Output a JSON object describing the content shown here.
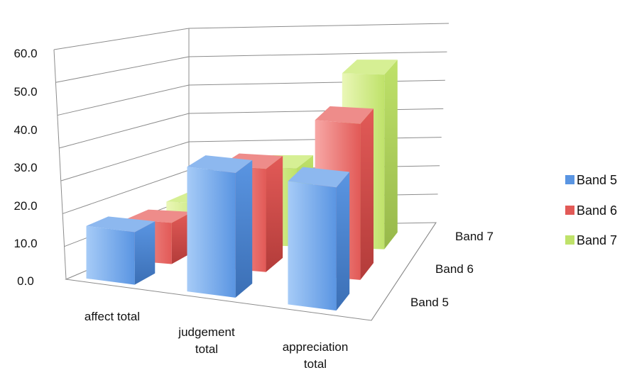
{
  "chart_data": {
    "type": "bar",
    "title": "",
    "categories": [
      "affect total",
      "judgement total",
      "appreciation total"
    ],
    "category_lines": [
      [
        "affect total"
      ],
      [
        "judgement",
        "total"
      ],
      [
        "appreciation",
        "total"
      ]
    ],
    "series": [
      {
        "name": "Band 5",
        "values": [
          17.5,
          41.5,
          41.0
        ]
      },
      {
        "name": "Band 6",
        "values": [
          14.0,
          35.0,
          53.0
        ]
      },
      {
        "name": "Band 7",
        "values": [
          14.0,
          27.0,
          60.5
        ]
      }
    ],
    "ylim": [
      0,
      60
    ],
    "yticks": [
      "0.0",
      "10.0",
      "20.0",
      "30.0",
      "40.0",
      "50.0",
      "60.0"
    ],
    "depth_labels": [
      "Band 5",
      "Band 6",
      "Band 7"
    ],
    "legend": [
      "Band 5",
      "Band 6",
      "Band 7"
    ],
    "legend_position": "right",
    "grid": true,
    "colors": {
      "Band 5": {
        "light": "#a6cbf7",
        "mid": "#5a95e2",
        "side": "#3b6fb5",
        "top": "#8db8ef"
      },
      "Band 6": {
        "light": "#f7a8a6",
        "mid": "#e25a57",
        "side": "#b33c3a",
        "top": "#ee8c8a"
      },
      "Band 7": {
        "light": "#eaf7b7",
        "mid": "#bfe26a",
        "side": "#97b84a",
        "top": "#d6ef94"
      }
    }
  }
}
